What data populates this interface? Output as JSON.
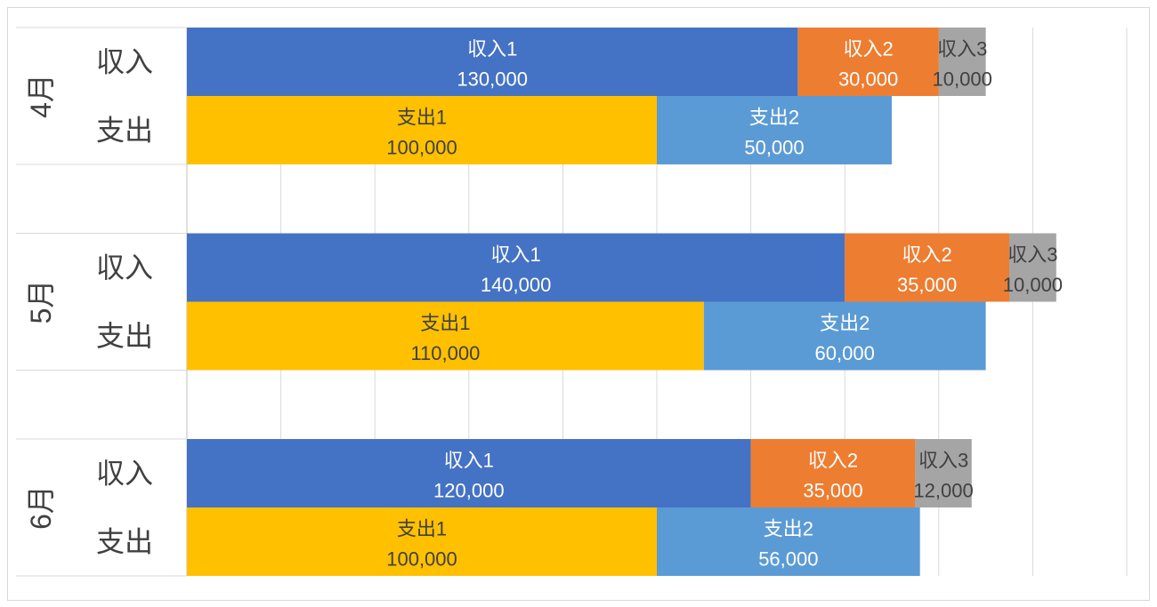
{
  "chart_data": {
    "type": "bar",
    "orientation": "horizontal",
    "stacked": true,
    "xlim": [
      0,
      200000
    ],
    "x_major_unit": 20000,
    "grid": "vertical",
    "x_axis_labels_shown": false,
    "legend": "none",
    "groups": [
      {
        "month": "4月",
        "rows": [
          {
            "label": "収入",
            "segments": [
              {
                "name": "収入1",
                "value": 130000,
                "value_label": "130,000",
                "color": "#4472C4",
                "text_color": "#ffffff"
              },
              {
                "name": "収入2",
                "value": 30000,
                "value_label": "30,000",
                "color": "#ED7D31",
                "text_color": "#ffffff"
              },
              {
                "name": "収入3",
                "value": 10000,
                "value_label": "10,000",
                "color": "#A5A5A5",
                "text_color": "#404040"
              }
            ]
          },
          {
            "label": "支出",
            "segments": [
              {
                "name": "支出1",
                "value": 100000,
                "value_label": "100,000",
                "color": "#FFC000",
                "text_color": "#404040"
              },
              {
                "name": "支出2",
                "value": 50000,
                "value_label": "50,000",
                "color": "#5B9BD5",
                "text_color": "#ffffff"
              }
            ]
          }
        ]
      },
      {
        "month": "5月",
        "rows": [
          {
            "label": "収入",
            "segments": [
              {
                "name": "収入1",
                "value": 140000,
                "value_label": "140,000",
                "color": "#4472C4",
                "text_color": "#ffffff"
              },
              {
                "name": "収入2",
                "value": 35000,
                "value_label": "35,000",
                "color": "#ED7D31",
                "text_color": "#ffffff"
              },
              {
                "name": "収入3",
                "value": 10000,
                "value_label": "10,000",
                "color": "#A5A5A5",
                "text_color": "#404040"
              }
            ]
          },
          {
            "label": "支出",
            "segments": [
              {
                "name": "支出1",
                "value": 110000,
                "value_label": "110,000",
                "color": "#FFC000",
                "text_color": "#404040"
              },
              {
                "name": "支出2",
                "value": 60000,
                "value_label": "60,000",
                "color": "#5B9BD5",
                "text_color": "#ffffff"
              }
            ]
          }
        ]
      },
      {
        "month": "6月",
        "rows": [
          {
            "label": "収入",
            "segments": [
              {
                "name": "収入1",
                "value": 120000,
                "value_label": "120,000",
                "color": "#4472C4",
                "text_color": "#ffffff"
              },
              {
                "name": "収入2",
                "value": 35000,
                "value_label": "35,000",
                "color": "#ED7D31",
                "text_color": "#ffffff"
              },
              {
                "name": "収入3",
                "value": 12000,
                "value_label": "12,000",
                "color": "#A5A5A5",
                "text_color": "#404040"
              }
            ]
          },
          {
            "label": "支出",
            "segments": [
              {
                "name": "支出1",
                "value": 100000,
                "value_label": "100,000",
                "color": "#FFC000",
                "text_color": "#404040"
              },
              {
                "name": "支出2",
                "value": 56000,
                "value_label": "56,000",
                "color": "#5B9BD5",
                "text_color": "#ffffff"
              }
            ]
          }
        ]
      }
    ]
  }
}
